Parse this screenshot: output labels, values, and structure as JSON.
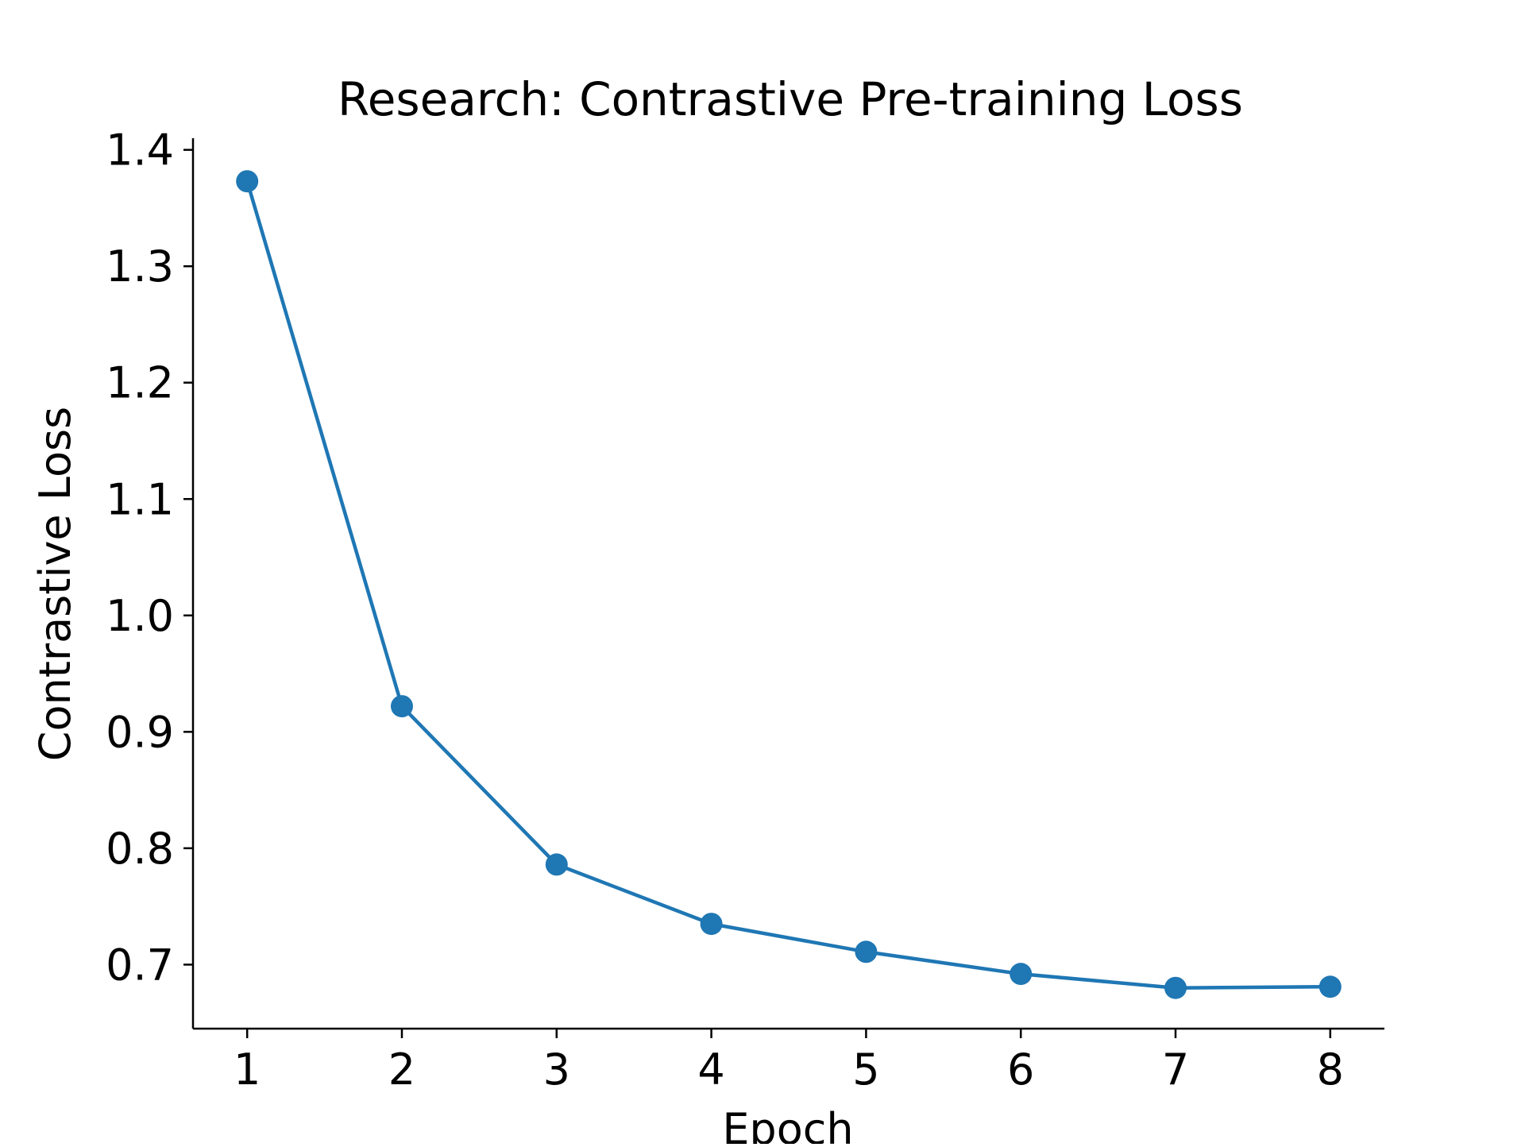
{
  "chart_data": {
    "type": "line",
    "title": "Research: Contrastive Pre-training Loss",
    "xlabel": "Epoch",
    "ylabel": "Contrastive Loss",
    "x": [
      1,
      2,
      3,
      4,
      5,
      6,
      7,
      8
    ],
    "x_tick_labels": [
      "1",
      "2",
      "3",
      "4",
      "5",
      "6",
      "7",
      "8"
    ],
    "y_tick_values": [
      0.7,
      0.8,
      0.9,
      1.0,
      1.1,
      1.2,
      1.3,
      1.4
    ],
    "y_tick_labels": [
      "0.7",
      "0.8",
      "0.9",
      "1.0",
      "1.1",
      "1.2",
      "1.3",
      "1.4"
    ],
    "xlim": [
      0.65,
      8.35
    ],
    "ylim": [
      0.645,
      1.41
    ],
    "grid": false,
    "legend": false,
    "series": [
      {
        "values": [
          1.373,
          0.922,
          0.786,
          0.735,
          0.711,
          0.692,
          0.68,
          0.681
        ],
        "color": "#1f77b4",
        "marker": "circle"
      }
    ]
  }
}
